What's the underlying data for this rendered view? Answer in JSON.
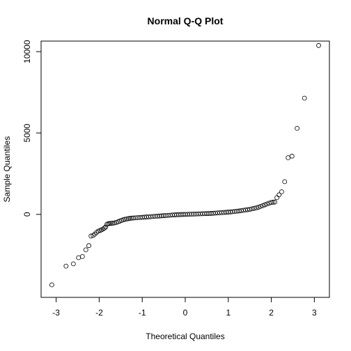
{
  "chart_data": {
    "type": "scatter",
    "title": "Normal Q-Q Plot",
    "xlabel": "Theoretical Quantiles",
    "ylabel": "Sample Quantiles",
    "xlim": [
      -3.35,
      3.35
    ],
    "ylim": [
      -5100,
      10650
    ],
    "xticks": [
      -3,
      -2,
      -1,
      0,
      1,
      2,
      3
    ],
    "yticks": [
      0,
      5000,
      10000
    ],
    "grid": false,
    "marker": "open-circle",
    "color": "#000000",
    "points": [
      {
        "x": -3.1,
        "y": -4330
      },
      {
        "x": -2.77,
        "y": -3180
      },
      {
        "x": -2.6,
        "y": -3040
      },
      {
        "x": -2.48,
        "y": -2660
      },
      {
        "x": -2.39,
        "y": -2590
      },
      {
        "x": -2.31,
        "y": -2180
      },
      {
        "x": -2.24,
        "y": -1920
      },
      {
        "x": -2.19,
        "y": -1330
      },
      {
        "x": -2.14,
        "y": -1290
      },
      {
        "x": -2.1,
        "y": -1210
      },
      {
        "x": -2.06,
        "y": -1110
      },
      {
        "x": -2.02,
        "y": -1030
      },
      {
        "x": -1.98,
        "y": -990
      },
      {
        "x": -1.95,
        "y": -950
      },
      {
        "x": -1.91,
        "y": -900
      },
      {
        "x": -1.88,
        "y": -840
      },
      {
        "x": -1.85,
        "y": -780
      },
      {
        "x": -1.82,
        "y": -610
      },
      {
        "x": -1.79,
        "y": -570
      },
      {
        "x": -1.76,
        "y": -560
      },
      {
        "x": -1.72,
        "y": -550
      },
      {
        "x": -1.68,
        "y": -540
      },
      {
        "x": -1.64,
        "y": -520
      },
      {
        "x": -1.6,
        "y": -490
      },
      {
        "x": -1.56,
        "y": -450
      },
      {
        "x": -1.52,
        "y": -410
      },
      {
        "x": -1.48,
        "y": -370
      },
      {
        "x": -1.44,
        "y": -330
      },
      {
        "x": -1.4,
        "y": -300
      },
      {
        "x": -1.36,
        "y": -280
      },
      {
        "x": -1.32,
        "y": -260
      },
      {
        "x": -1.28,
        "y": -240
      },
      {
        "x": -1.24,
        "y": -230
      },
      {
        "x": -1.2,
        "y": -220
      },
      {
        "x": -1.15,
        "y": -210
      },
      {
        "x": -1.1,
        "y": -200
      },
      {
        "x": -1.05,
        "y": -190
      },
      {
        "x": -1.0,
        "y": -180
      },
      {
        "x": -0.95,
        "y": -170
      },
      {
        "x": -0.9,
        "y": -160
      },
      {
        "x": -0.85,
        "y": -150
      },
      {
        "x": -0.8,
        "y": -140
      },
      {
        "x": -0.75,
        "y": -130
      },
      {
        "x": -0.7,
        "y": -120
      },
      {
        "x": -0.65,
        "y": -110
      },
      {
        "x": -0.6,
        "y": -100
      },
      {
        "x": -0.55,
        "y": -90
      },
      {
        "x": -0.5,
        "y": -80
      },
      {
        "x": -0.45,
        "y": -70
      },
      {
        "x": -0.4,
        "y": -60
      },
      {
        "x": -0.35,
        "y": -50
      },
      {
        "x": -0.3,
        "y": -40
      },
      {
        "x": -0.25,
        "y": -30
      },
      {
        "x": -0.2,
        "y": -20
      },
      {
        "x": -0.15,
        "y": -15
      },
      {
        "x": -0.1,
        "y": -10
      },
      {
        "x": -0.05,
        "y": -5
      },
      {
        "x": 0.0,
        "y": 0
      },
      {
        "x": 0.05,
        "y": 5
      },
      {
        "x": 0.1,
        "y": 10
      },
      {
        "x": 0.15,
        "y": 15
      },
      {
        "x": 0.2,
        "y": 20
      },
      {
        "x": 0.25,
        "y": 25
      },
      {
        "x": 0.3,
        "y": 30
      },
      {
        "x": 0.35,
        "y": 35
      },
      {
        "x": 0.4,
        "y": 40
      },
      {
        "x": 0.45,
        "y": 45
      },
      {
        "x": 0.5,
        "y": 50
      },
      {
        "x": 0.55,
        "y": 55
      },
      {
        "x": 0.6,
        "y": 60
      },
      {
        "x": 0.65,
        "y": 70
      },
      {
        "x": 0.7,
        "y": 80
      },
      {
        "x": 0.75,
        "y": 90
      },
      {
        "x": 0.8,
        "y": 100
      },
      {
        "x": 0.85,
        "y": 110
      },
      {
        "x": 0.9,
        "y": 120
      },
      {
        "x": 0.95,
        "y": 130
      },
      {
        "x": 1.0,
        "y": 140
      },
      {
        "x": 1.05,
        "y": 150
      },
      {
        "x": 1.1,
        "y": 165
      },
      {
        "x": 1.15,
        "y": 180
      },
      {
        "x": 1.2,
        "y": 195
      },
      {
        "x": 1.25,
        "y": 210
      },
      {
        "x": 1.3,
        "y": 230
      },
      {
        "x": 1.35,
        "y": 250
      },
      {
        "x": 1.4,
        "y": 270
      },
      {
        "x": 1.45,
        "y": 290
      },
      {
        "x": 1.5,
        "y": 310
      },
      {
        "x": 1.55,
        "y": 340
      },
      {
        "x": 1.6,
        "y": 370
      },
      {
        "x": 1.65,
        "y": 400
      },
      {
        "x": 1.7,
        "y": 440
      },
      {
        "x": 1.75,
        "y": 490
      },
      {
        "x": 1.8,
        "y": 540
      },
      {
        "x": 1.85,
        "y": 590
      },
      {
        "x": 1.9,
        "y": 640
      },
      {
        "x": 1.95,
        "y": 690
      },
      {
        "x": 2.0,
        "y": 730
      },
      {
        "x": 2.04,
        "y": 750
      },
      {
        "x": 2.08,
        "y": 760
      },
      {
        "x": 2.13,
        "y": 1030
      },
      {
        "x": 2.18,
        "y": 1200
      },
      {
        "x": 2.24,
        "y": 1390
      },
      {
        "x": 2.31,
        "y": 2010
      },
      {
        "x": 2.39,
        "y": 3480
      },
      {
        "x": 2.48,
        "y": 3580
      },
      {
        "x": 2.6,
        "y": 5290
      },
      {
        "x": 2.77,
        "y": 7140
      },
      {
        "x": 3.1,
        "y": 10380
      }
    ]
  }
}
